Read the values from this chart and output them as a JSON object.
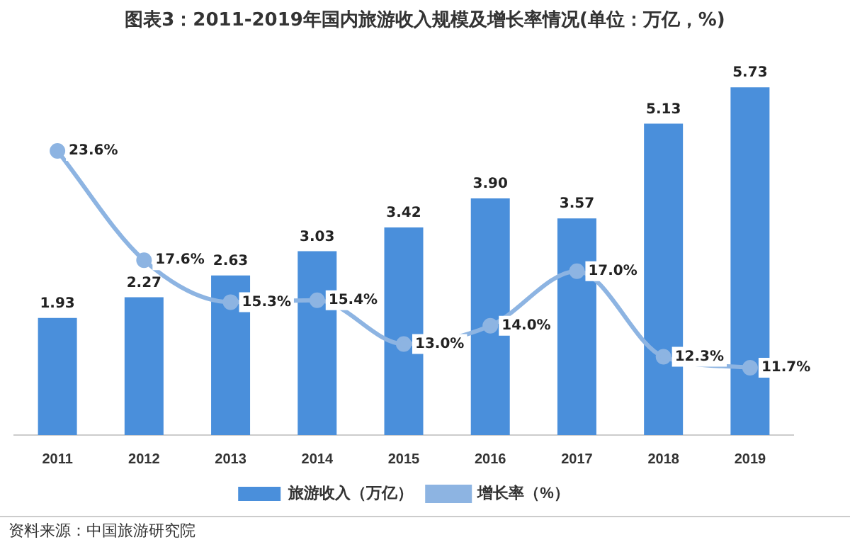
{
  "chart_data": {
    "type": "bar",
    "title": "图表3：2011-2019年国内旅游收入规模及增长率情况(单位：万亿，%)",
    "categories": [
      "2011",
      "2012",
      "2013",
      "2014",
      "2015",
      "2016",
      "2017",
      "2018",
      "2019"
    ],
    "series": [
      {
        "name": "旅游收入（万亿）",
        "color": "#4a8fdb",
        "values": [
          1.93,
          2.27,
          2.63,
          3.03,
          3.42,
          3.9,
          3.57,
          5.13,
          5.73
        ],
        "value_labels": [
          "1.93",
          "2.27",
          "2.63",
          "3.03",
          "3.42",
          "3.90",
          "3.57",
          "5.13",
          "5.73"
        ]
      },
      {
        "name": "增长率（%）",
        "type": "line",
        "axis": "y2",
        "color": "#8db4e2",
        "marker": "circle",
        "values": [
          23.6,
          17.6,
          15.3,
          15.4,
          13.0,
          14.0,
          17.0,
          12.3,
          11.7
        ],
        "value_labels": [
          "23.6%",
          "17.6%",
          "15.3%",
          "15.4%",
          "13.0%",
          "14.0%",
          "17.0%",
          "12.3%",
          "11.7%"
        ]
      }
    ],
    "legend": "bottom",
    "grid": false,
    "tick_labels": "x",
    "annotations": [
      "资料来源：中国旅游研究院"
    ]
  }
}
